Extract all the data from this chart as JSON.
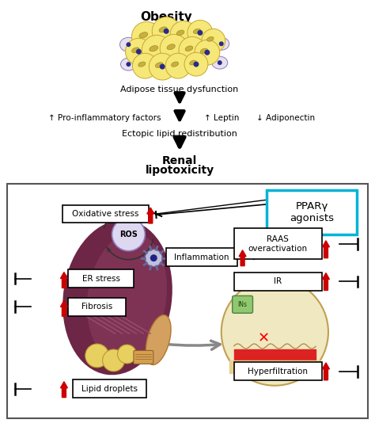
{
  "title": "Obesity",
  "adipose_text": "Adipose tissue dysfunction",
  "factors_text": "↑ Pro-inflammatory factors",
  "leptin_text": "↑ Leptin",
  "adiponectin_text": "↓ Adiponectin",
  "ectopic_text": "Ectopic lipid redistribution",
  "renal_line1": "Renal",
  "renal_line2": "lipotoxicity",
  "ppar_text": "PPARγ\nagonists",
  "oxidative_text": "Oxidative stress",
  "ros_text": "ROS",
  "inflammation_text": "Inflammation",
  "er_stress_text": "ER stress",
  "fibrosis_text": "Fibrosis",
  "lipid_text": "Lipid droplets",
  "raas_text": "RAAS\noveractivation",
  "ir_text": "IR",
  "hyper_text": "Hyperfiltration",
  "bg_color": "#ffffff",
  "kidney_color": "#6d2645",
  "kidney_inner": "#7e3354",
  "ppar_border": "#00b4d8",
  "red_arrow_color": "#cc0000",
  "adipose_yellow": "#f5e878",
  "adipose_yellow2": "#f0dc60",
  "adipose_border": "#c8a830",
  "immune_color": "#e8e0f0",
  "immune_border": "#9080b0",
  "nucleus_color": "#2a2a8a",
  "fat_yellow": "#e8d060",
  "fat_border": "#b89830",
  "ureter_color": "#d4a060",
  "glom_color": "#f0e8c0",
  "glom_border": "#c0a050"
}
